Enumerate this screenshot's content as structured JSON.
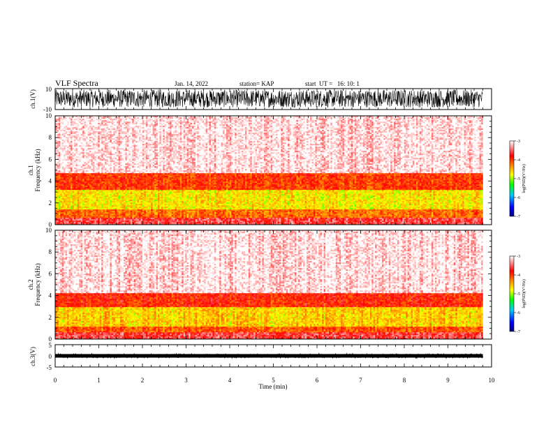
{
  "header": {
    "title": "VLF Spectra",
    "date": "Jan. 14, 2022",
    "station": "station= KAP",
    "start": "start  UT =   16: 10: 1"
  },
  "chart_data": [
    {
      "type": "line",
      "name": "ch1-waveform",
      "ylabel": "ch.1(V)",
      "xlim": [
        0,
        10
      ],
      "ylim": [
        -10,
        10
      ],
      "yticks": [
        "10",
        "-10"
      ],
      "data_end_min": 9.8,
      "amplitude_range": [
        -8,
        9
      ]
    },
    {
      "type": "heatmap",
      "name": "ch1-spectrogram",
      "ylabel_line1": "ch.1",
      "ylabel_line2": "Frequency (kHz)",
      "xlim": [
        0,
        10
      ],
      "ylim": [
        0,
        10
      ],
      "yticks": [
        "0",
        "2",
        "4",
        "6",
        "8",
        "10"
      ],
      "data_end_min": 9.8,
      "colorbar": {
        "label": "log(PSD)(V²/Hz)",
        "range": [
          -7,
          -3
        ],
        "ticks": [
          "-3",
          "-4",
          "-5",
          "-6",
          "-7"
        ],
        "colors": [
          "#000080",
          "#0000ff",
          "#00c8ff",
          "#00ff00",
          "#ffff00",
          "#ff8000",
          "#ff0000",
          "#ffffff"
        ]
      },
      "bands": [
        {
          "freq_khz": [
            0,
            0.6
          ],
          "level": -3.6
        },
        {
          "freq_khz": [
            0.6,
            1.4
          ],
          "level": -4.2
        },
        {
          "freq_khz": [
            1.4,
            3.2
          ],
          "level": -4.7
        },
        {
          "freq_khz": [
            3.2,
            4.8
          ],
          "level": -4.0
        },
        {
          "freq_khz": [
            4.8,
            10
          ],
          "level": -3.1
        }
      ]
    },
    {
      "type": "heatmap",
      "name": "ch2-spectrogram",
      "ylabel_line1": "ch.2",
      "ylabel_line2": "Frequency (kHz)",
      "xlim": [
        0,
        10
      ],
      "ylim": [
        0,
        10
      ],
      "yticks": [
        "0",
        "2",
        "4",
        "6",
        "8",
        "10"
      ],
      "data_end_min": 9.8,
      "colorbar": {
        "label": "log(PSD)(V²/Hz)",
        "range": [
          -7,
          -3
        ],
        "ticks": [
          "-3",
          "-4",
          "-5",
          "-6",
          "-7"
        ],
        "colors": [
          "#000080",
          "#0000ff",
          "#00c8ff",
          "#00ff00",
          "#ffff00",
          "#ff8000",
          "#ff0000",
          "#ffffff"
        ]
      },
      "bands": [
        {
          "freq_khz": [
            0,
            0.6
          ],
          "level": -3.6
        },
        {
          "freq_khz": [
            0.6,
            1.2
          ],
          "level": -4.1
        },
        {
          "freq_khz": [
            1.2,
            3.0
          ],
          "level": -4.6
        },
        {
          "freq_khz": [
            3.0,
            4.2
          ],
          "level": -3.9
        },
        {
          "freq_khz": [
            4.2,
            10
          ],
          "level": -3.1
        }
      ]
    },
    {
      "type": "line",
      "name": "ch3-waveform",
      "ylabel": "ch.3(V)",
      "xlabel": "Time (min)",
      "xlim": [
        0,
        10
      ],
      "ylim": [
        -5,
        5
      ],
      "yticks": [
        "5",
        "0",
        "-5"
      ],
      "xticks": [
        "0",
        "1",
        "2",
        "3",
        "4",
        "5",
        "6",
        "7",
        "8",
        "9",
        "10"
      ],
      "data_end_min": 9.8,
      "amplitude_range": [
        -0.8,
        0.8
      ]
    }
  ]
}
